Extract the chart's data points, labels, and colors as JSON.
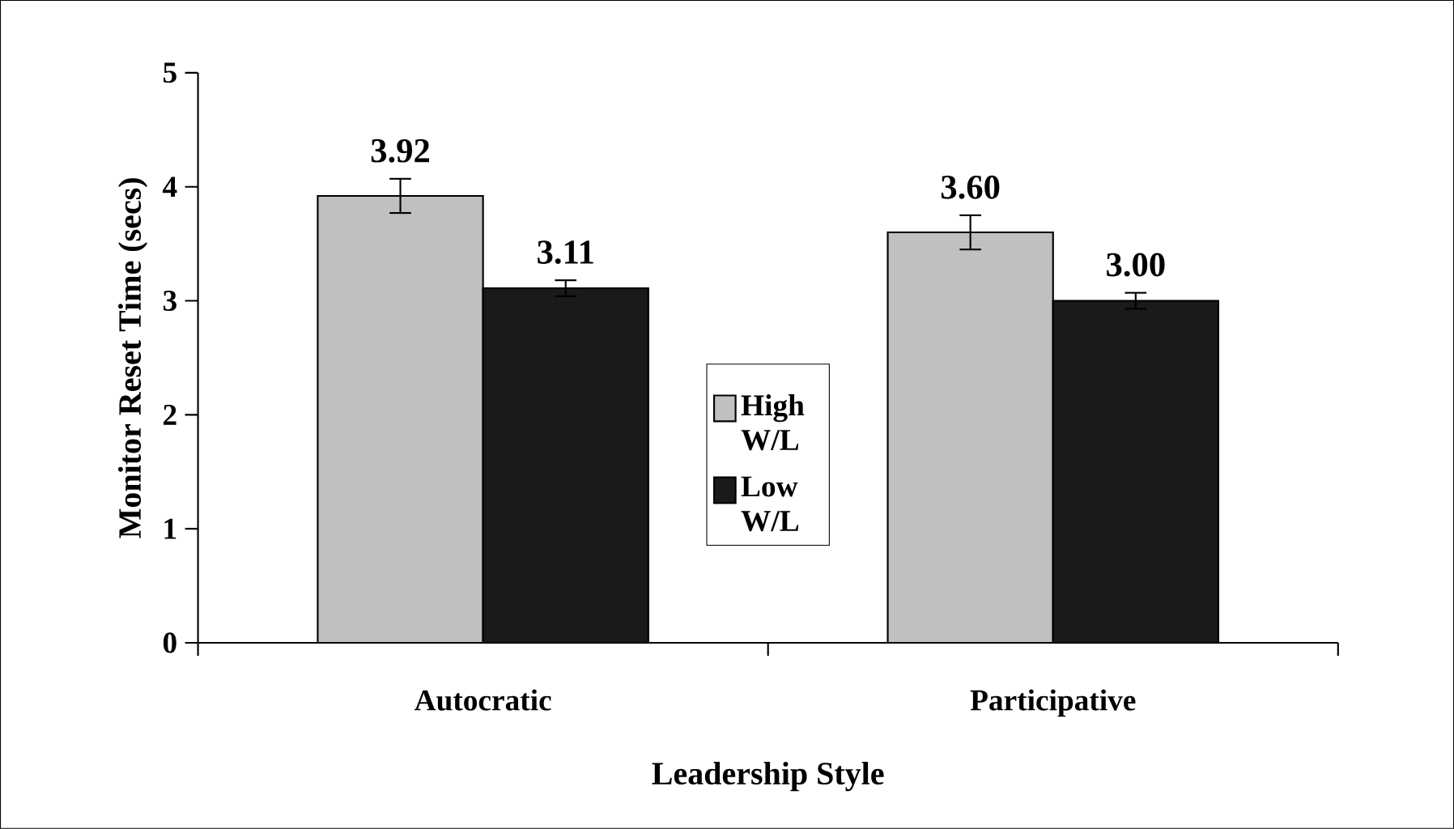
{
  "chart_data": {
    "type": "bar",
    "xlabel": "Leadership Style",
    "ylabel": "Monitor Reset Time (secs)",
    "categories": [
      "Autocratic",
      "Participative"
    ],
    "series": [
      {
        "name": "High W/L",
        "color": "#c0c0c0",
        "values": [
          3.92,
          3.6
        ],
        "errors": [
          0.15,
          0.15
        ],
        "value_labels": [
          "3.92",
          "3.60"
        ]
      },
      {
        "name": "Low W/L",
        "color": "#1a1a1a",
        "values": [
          3.11,
          3.0
        ],
        "errors": [
          0.07,
          0.07
        ],
        "value_labels": [
          "3.11",
          "3.00"
        ]
      }
    ],
    "ylim": [
      0,
      5
    ],
    "yticks": [
      0,
      1,
      2,
      3,
      4,
      5
    ],
    "grid": false,
    "legend": "center"
  }
}
